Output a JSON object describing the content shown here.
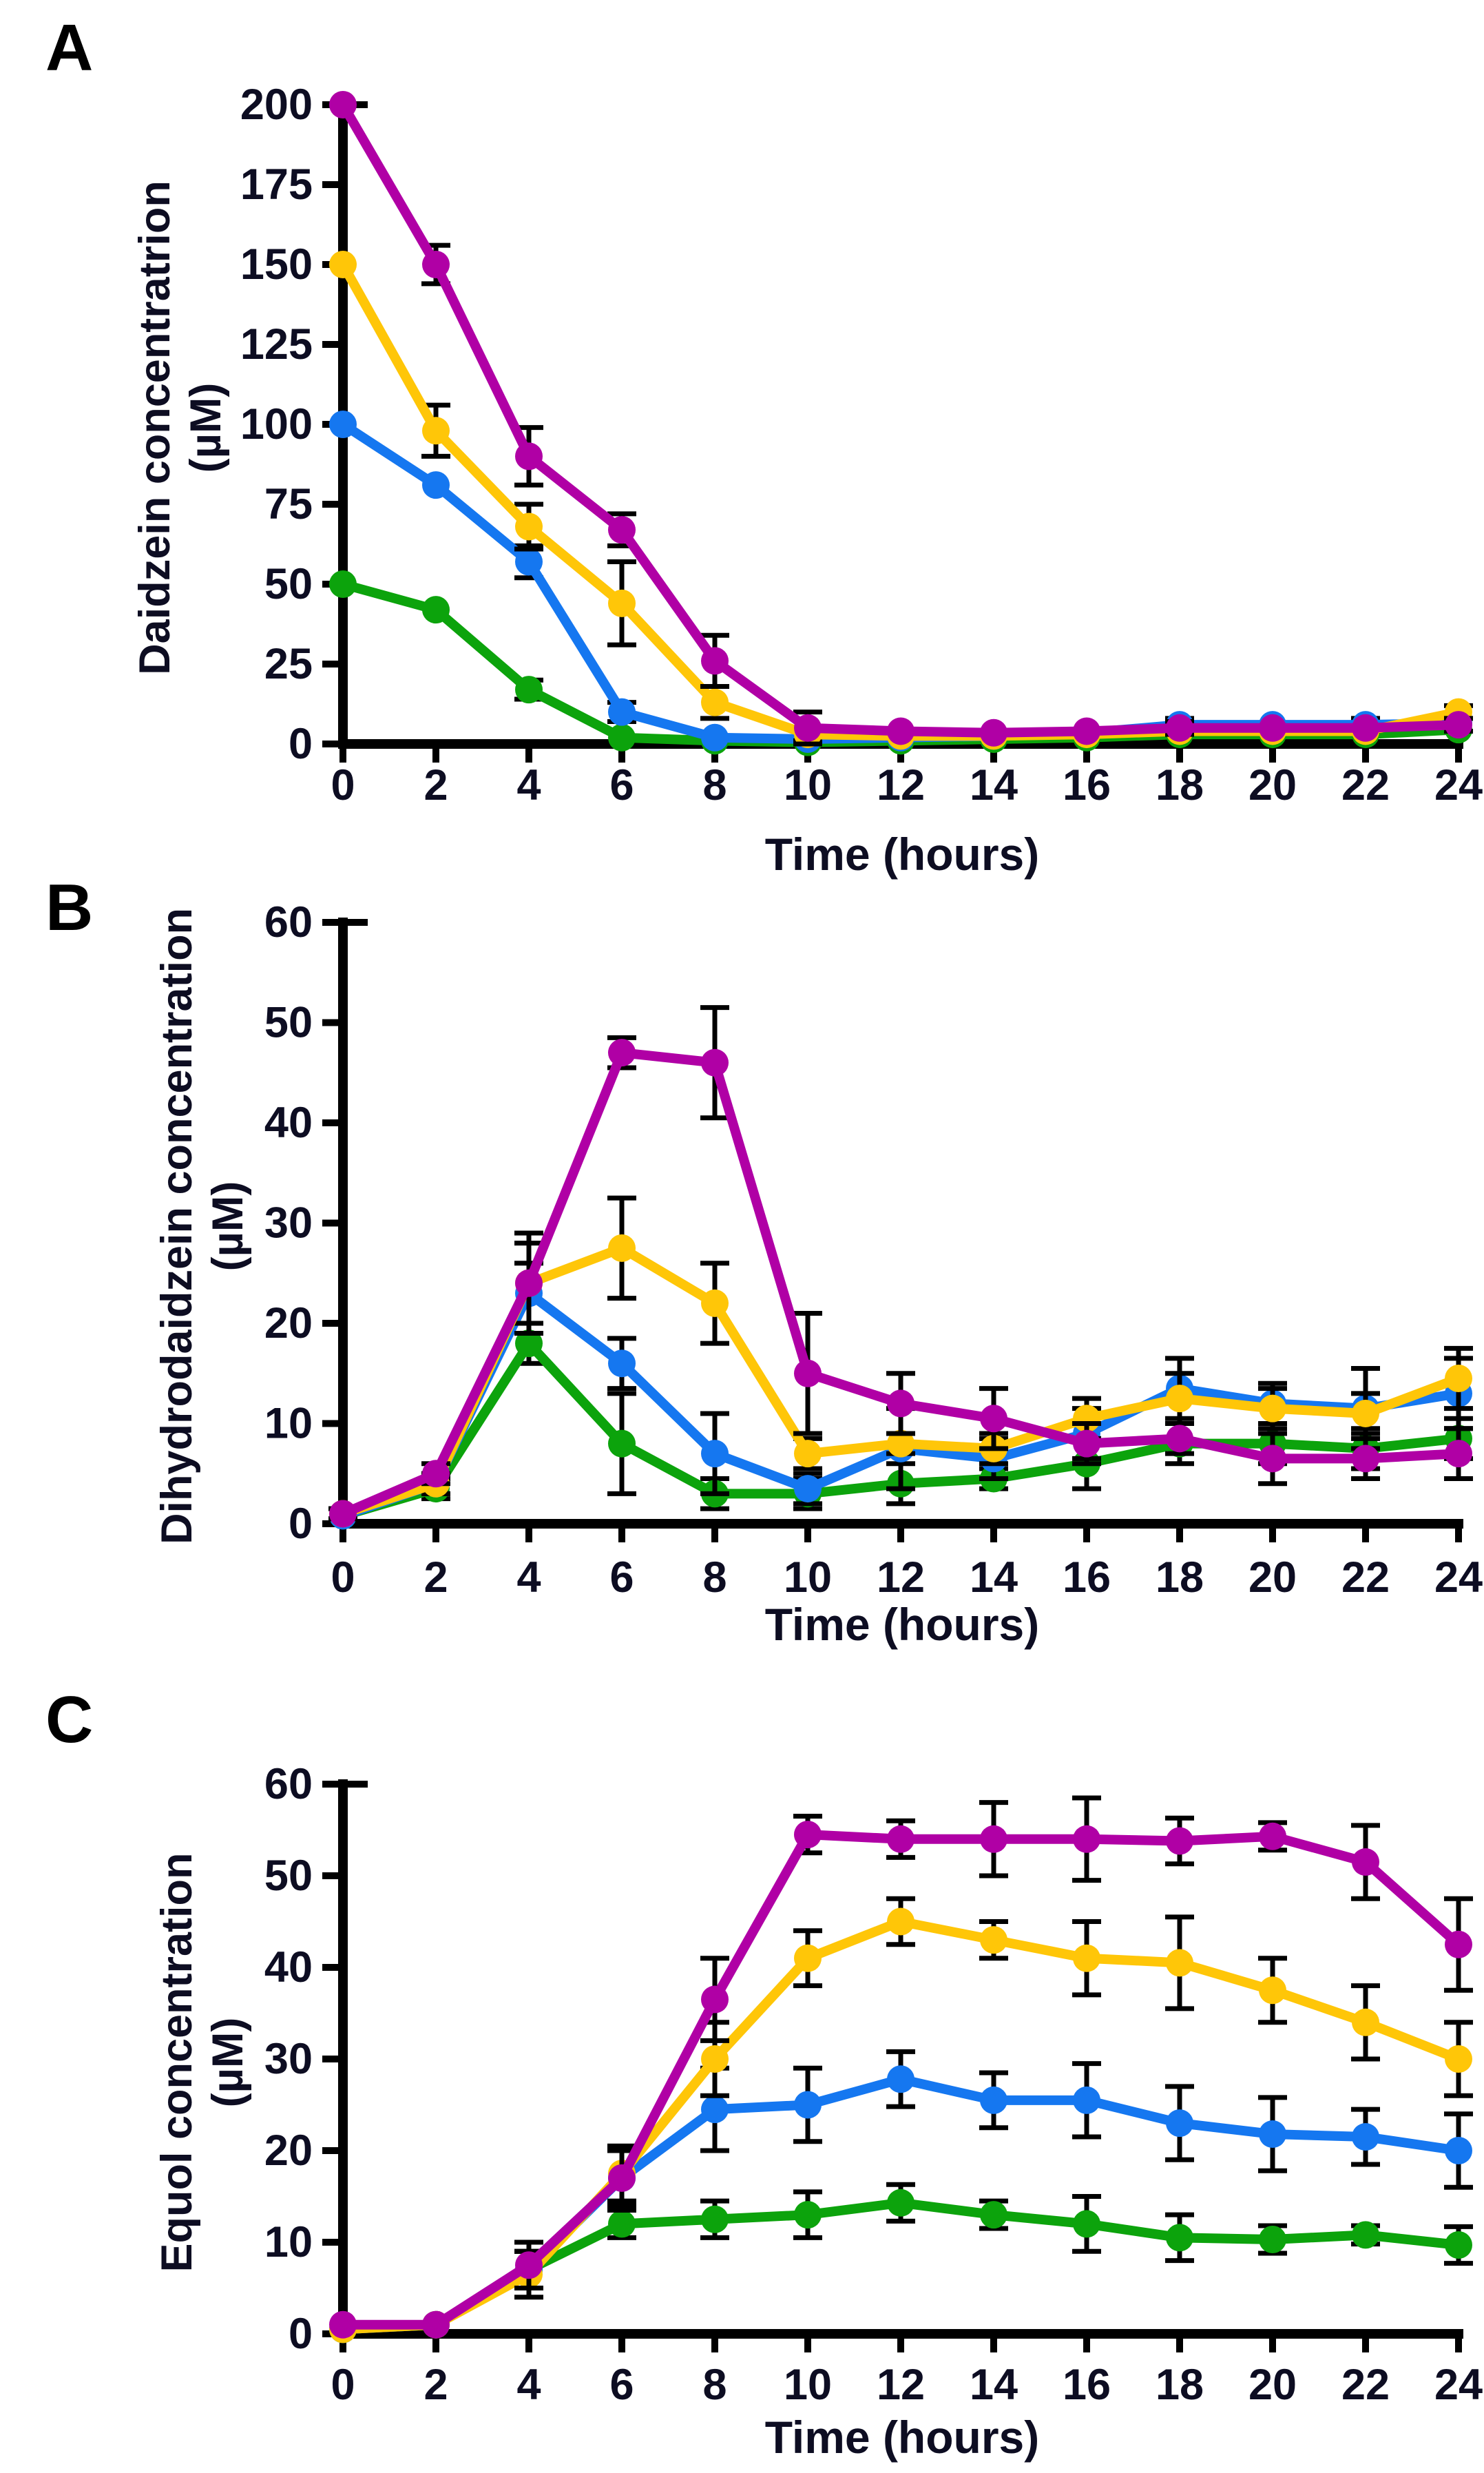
{
  "figure": {
    "background": "#FFFFFF",
    "panel_count": 3,
    "axis_color": "#000000",
    "tick_text_color": "#0d0d22"
  },
  "chart_data": [
    {
      "type": "line",
      "panel_label": "A",
      "ylabel": "Daidzein concentratrion",
      "ylabel_unit": "(µM)",
      "xlabel": "Time (hours)",
      "xlim": [
        0,
        24
      ],
      "ylim": [
        0,
        200
      ],
      "xticks": [
        0,
        2,
        4,
        6,
        8,
        10,
        12,
        14,
        16,
        18,
        20,
        22,
        24
      ],
      "yticks": [
        0,
        25,
        50,
        75,
        100,
        125,
        150,
        175,
        200
      ],
      "grid": false,
      "legend": "none",
      "x": [
        0,
        2,
        4,
        6,
        8,
        10,
        12,
        14,
        16,
        18,
        20,
        22,
        24
      ],
      "series": [
        {
          "name": "series-magenta",
          "color": "#B000A5",
          "values": [
            200,
            150,
            90,
            67,
            26,
            5,
            4,
            3.5,
            4,
            5,
            5,
            5,
            6
          ],
          "errors": [
            0,
            6,
            9,
            5,
            8,
            5,
            0,
            0,
            0,
            2,
            0,
            0,
            2
          ]
        },
        {
          "name": "series-gold",
          "color": "#FFC608",
          "values": [
            150,
            98,
            68,
            44,
            13,
            3,
            2.5,
            2.5,
            3,
            4,
            4,
            4,
            10
          ],
          "errors": [
            0,
            8,
            7,
            13,
            5,
            2,
            0,
            0,
            0,
            0,
            0,
            0,
            2
          ]
        },
        {
          "name": "series-blue",
          "color": "#1577F0",
          "values": [
            100,
            81,
            57,
            10,
            2,
            1.5,
            2,
            2.5,
            3.5,
            6,
            6,
            6,
            6.5
          ],
          "errors": [
            0,
            0,
            5,
            3,
            0,
            0,
            0,
            0,
            0,
            2,
            0,
            2,
            0
          ]
        },
        {
          "name": "series-green",
          "color": "#0CA30C",
          "values": [
            50,
            42,
            17,
            2,
            1,
            0.5,
            1,
            1.5,
            2,
            3,
            3,
            3,
            4.5
          ],
          "errors": [
            0,
            0,
            3,
            0,
            0,
            0,
            0,
            0,
            0,
            0,
            0,
            0,
            0
          ]
        }
      ]
    },
    {
      "type": "line",
      "panel_label": "B",
      "ylabel": "Dihydrodaidzein concentration",
      "ylabel_unit": "(µM)",
      "xlabel": "Time (hours)",
      "xlim": [
        0,
        24
      ],
      "ylim": [
        0,
        60
      ],
      "xticks": [
        0,
        2,
        4,
        6,
        8,
        10,
        12,
        14,
        16,
        18,
        20,
        22,
        24
      ],
      "yticks": [
        0,
        10,
        20,
        30,
        40,
        50,
        60
      ],
      "grid": false,
      "legend": "none",
      "x": [
        0,
        2,
        4,
        6,
        8,
        10,
        12,
        14,
        16,
        18,
        20,
        22,
        24
      ],
      "series": [
        {
          "name": "series-magenta",
          "color": "#B000A5",
          "values": [
            1,
            5,
            24,
            47,
            46,
            15,
            12,
            10.5,
            8,
            8.5,
            6.5,
            6.5,
            7
          ],
          "errors": [
            0.5,
            1,
            5,
            1.5,
            5.5,
            6,
            3,
            3,
            2,
            1.5,
            2.5,
            2,
            2.5
          ]
        },
        {
          "name": "series-gold",
          "color": "#FFC608",
          "values": [
            1,
            4,
            24,
            27.5,
            22,
            7,
            8,
            7.5,
            10.5,
            12.5,
            11.5,
            11,
            14.5
          ],
          "errors": [
            0.5,
            1,
            4,
            5,
            4,
            1.5,
            1,
            1.5,
            2,
            2.5,
            2,
            2,
            3
          ]
        },
        {
          "name": "series-blue",
          "color": "#1577F0",
          "values": [
            0.8,
            4,
            23,
            16,
            7,
            3.5,
            7.5,
            6.5,
            9,
            13.5,
            12,
            11.5,
            13
          ],
          "errors": [
            0,
            1,
            3,
            2.5,
            4,
            1.5,
            4,
            2,
            2.5,
            3,
            2,
            4,
            3.5
          ]
        },
        {
          "name": "series-green",
          "color": "#0CA30C",
          "values": [
            0.8,
            3.5,
            18,
            8,
            3,
            3,
            4,
            4.5,
            6,
            8,
            8,
            7.5,
            8.5
          ],
          "errors": [
            0,
            1,
            2,
            5,
            1.5,
            1.5,
            2,
            1,
            2.5,
            2,
            2,
            2,
            2
          ]
        }
      ]
    },
    {
      "type": "line",
      "panel_label": "C",
      "ylabel": "Equol concentration",
      "ylabel_unit": "(µM)",
      "xlabel": "Time (hours)",
      "xlim": [
        0,
        24
      ],
      "ylim": [
        0,
        60
      ],
      "xticks": [
        0,
        2,
        4,
        6,
        8,
        10,
        12,
        14,
        16,
        18,
        20,
        22,
        24
      ],
      "yticks": [
        0,
        10,
        20,
        30,
        40,
        50,
        60
      ],
      "grid": false,
      "legend": "none",
      "x": [
        0,
        2,
        4,
        6,
        8,
        10,
        12,
        14,
        16,
        18,
        20,
        22,
        24
      ],
      "series": [
        {
          "name": "series-magenta",
          "color": "#B000A5",
          "values": [
            1,
            1,
            7.5,
            17,
            36.5,
            54.5,
            54,
            54,
            54,
            53.8,
            54.3,
            51.5,
            42.5
          ],
          "errors": [
            0,
            0,
            2.5,
            3,
            4.5,
            2,
            2,
            4,
            4.5,
            2.5,
            1.5,
            4,
            5
          ]
        },
        {
          "name": "series-gold",
          "color": "#FFC608",
          "values": [
            0.5,
            1,
            6.5,
            17.5,
            30,
            41,
            45,
            43,
            41,
            40.5,
            37.5,
            34,
            30
          ],
          "errors": [
            0,
            0,
            2.5,
            3,
            4,
            3,
            2.5,
            2,
            4,
            5,
            3.5,
            4,
            4
          ]
        },
        {
          "name": "series-blue",
          "color": "#1577F0",
          "values": [
            0.5,
            1,
            7,
            17,
            24.5,
            25,
            27.8,
            25.5,
            25.5,
            23,
            21.8,
            21.5,
            20
          ],
          "errors": [
            0,
            0,
            2,
            3.5,
            4.5,
            4,
            3,
            3,
            4,
            4,
            4,
            3,
            4
          ]
        },
        {
          "name": "series-green",
          "color": "#0CA30C",
          "values": [
            0.5,
            1,
            7,
            12,
            12.5,
            13,
            14.3,
            13,
            12,
            10.5,
            10.3,
            10.8,
            9.7
          ],
          "errors": [
            0,
            0,
            2,
            1.5,
            2,
            2.5,
            2,
            1.5,
            3,
            2.5,
            1.5,
            1,
            2
          ]
        }
      ]
    }
  ]
}
